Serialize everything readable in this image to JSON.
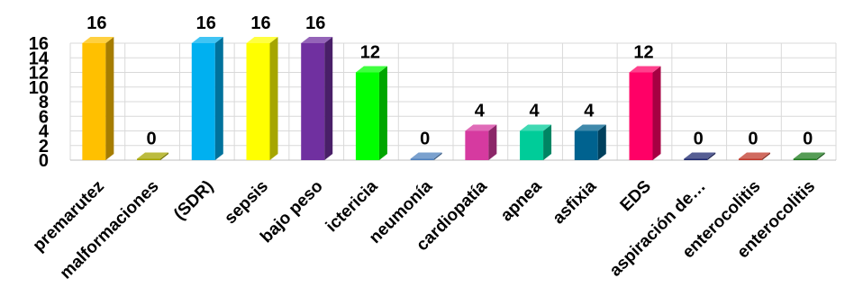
{
  "chart_data": {
    "type": "bar",
    "title": "",
    "xlabel": "",
    "ylabel": "",
    "ylim": [
      0,
      16
    ],
    "yticks": [
      0,
      2,
      4,
      6,
      8,
      10,
      12,
      14,
      16
    ],
    "grid": true,
    "legend": "none",
    "categories": [
      "premarutez",
      "malformaciones",
      "(SDR)",
      "sepsis",
      "bajo peso",
      "ictericia",
      "neumonía",
      "cardiopatía",
      "apnea",
      "asfixia",
      "EDS",
      "aspiración de…",
      "enterocolitis",
      "enterocolitis"
    ],
    "values": [
      16,
      0,
      16,
      16,
      16,
      12,
      0,
      4,
      4,
      4,
      12,
      0,
      0,
      0
    ],
    "colors": [
      "#FFC000",
      "#A5A500",
      "#00B0F0",
      "#FFFF00",
      "#7030A0",
      "#00FF00",
      "#4F81BD",
      "#D63AA0",
      "#00CC99",
      "#00628F",
      "#FF0066",
      "#1F2A70",
      "#C0392B",
      "#1E7B1E"
    ]
  }
}
